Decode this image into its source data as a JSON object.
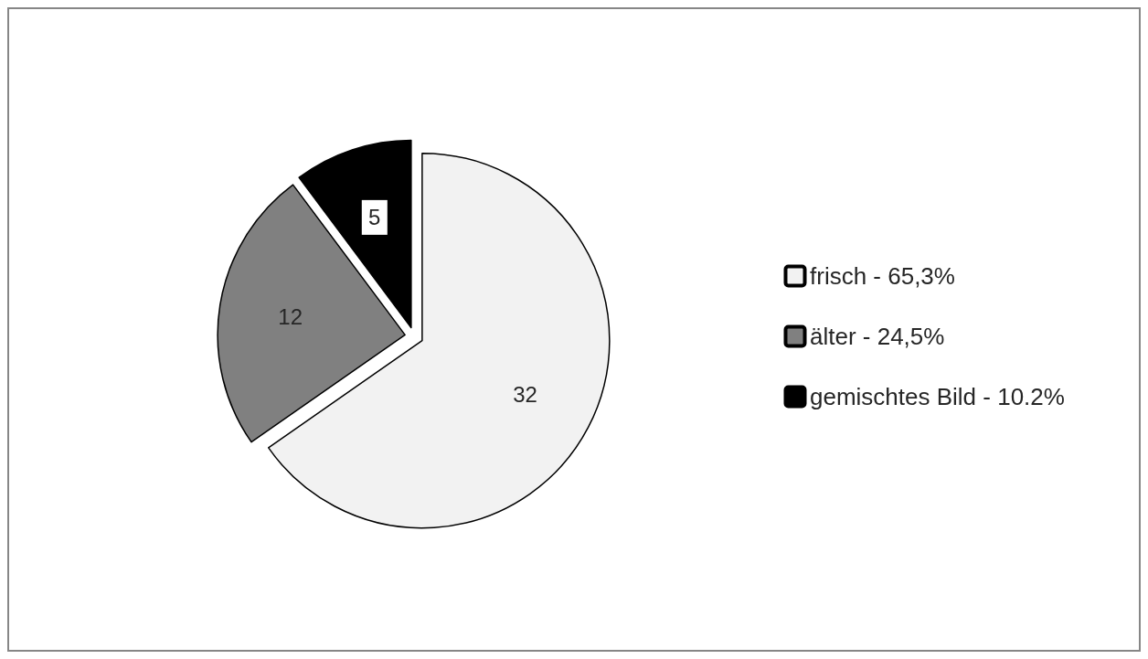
{
  "chart_data": {
    "type": "pie",
    "categories": [
      "frisch - 65,3%",
      "älter - 24,5%",
      "gemischtes Bild - 10.2%"
    ],
    "values": [
      32,
      12,
      5
    ],
    "colors": [
      "#f2f2f2",
      "#808080",
      "#000000"
    ],
    "data_labels": true,
    "legend": "right"
  }
}
